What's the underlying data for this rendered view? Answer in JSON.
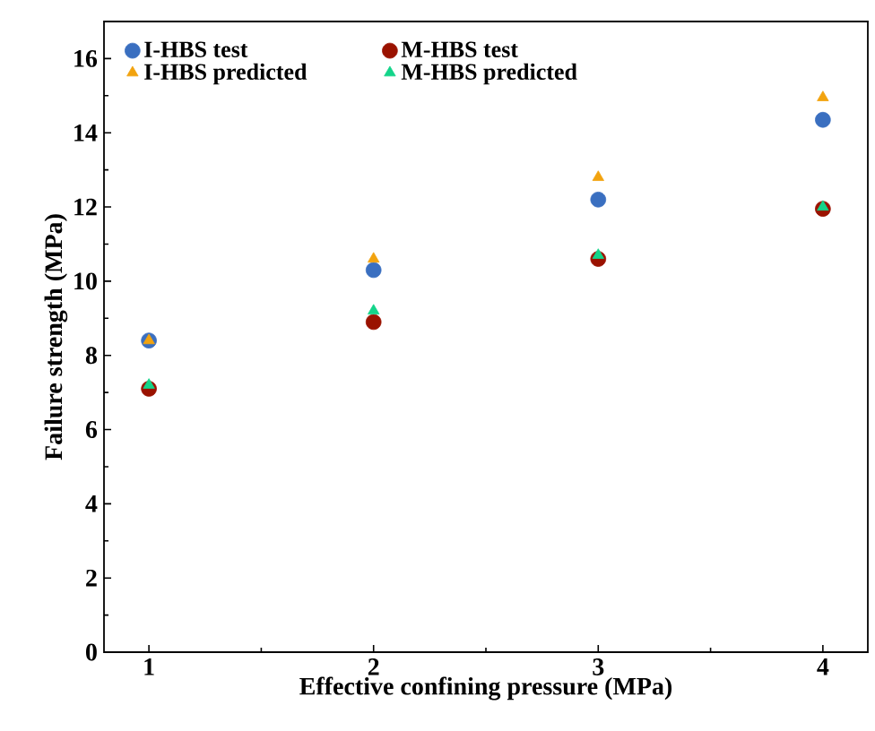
{
  "chart_data": {
    "type": "scatter",
    "xlabel": "Effective confining pressure (MPa)",
    "ylabel": "Failure strength (MPa)",
    "x": [
      1,
      2,
      3,
      4
    ],
    "xlim": [
      0.8,
      4.2
    ],
    "xticks": [
      1,
      2,
      3,
      4
    ],
    "ylim": [
      0,
      17
    ],
    "yticks": [
      0,
      2,
      4,
      6,
      8,
      10,
      12,
      14,
      16
    ],
    "legend": "top",
    "grid": false,
    "series": [
      {
        "name": "I-HBS test",
        "color": "#3a6fc0",
        "marker": "circle",
        "values": [
          8.4,
          10.3,
          12.2,
          14.35
        ]
      },
      {
        "name": "M-HBS test",
        "color": "#9a1200",
        "marker": "circle",
        "values": [
          7.1,
          8.9,
          10.6,
          11.95
        ]
      },
      {
        "name": "I-HBS predicted",
        "color": "#f2a30f",
        "marker": "triangle",
        "values": [
          8.4,
          10.6,
          12.8,
          14.95
        ]
      },
      {
        "name": "M-HBS predicted",
        "color": "#14d48a",
        "marker": "triangle",
        "values": [
          7.2,
          9.2,
          10.7,
          12.0
        ]
      }
    ]
  }
}
